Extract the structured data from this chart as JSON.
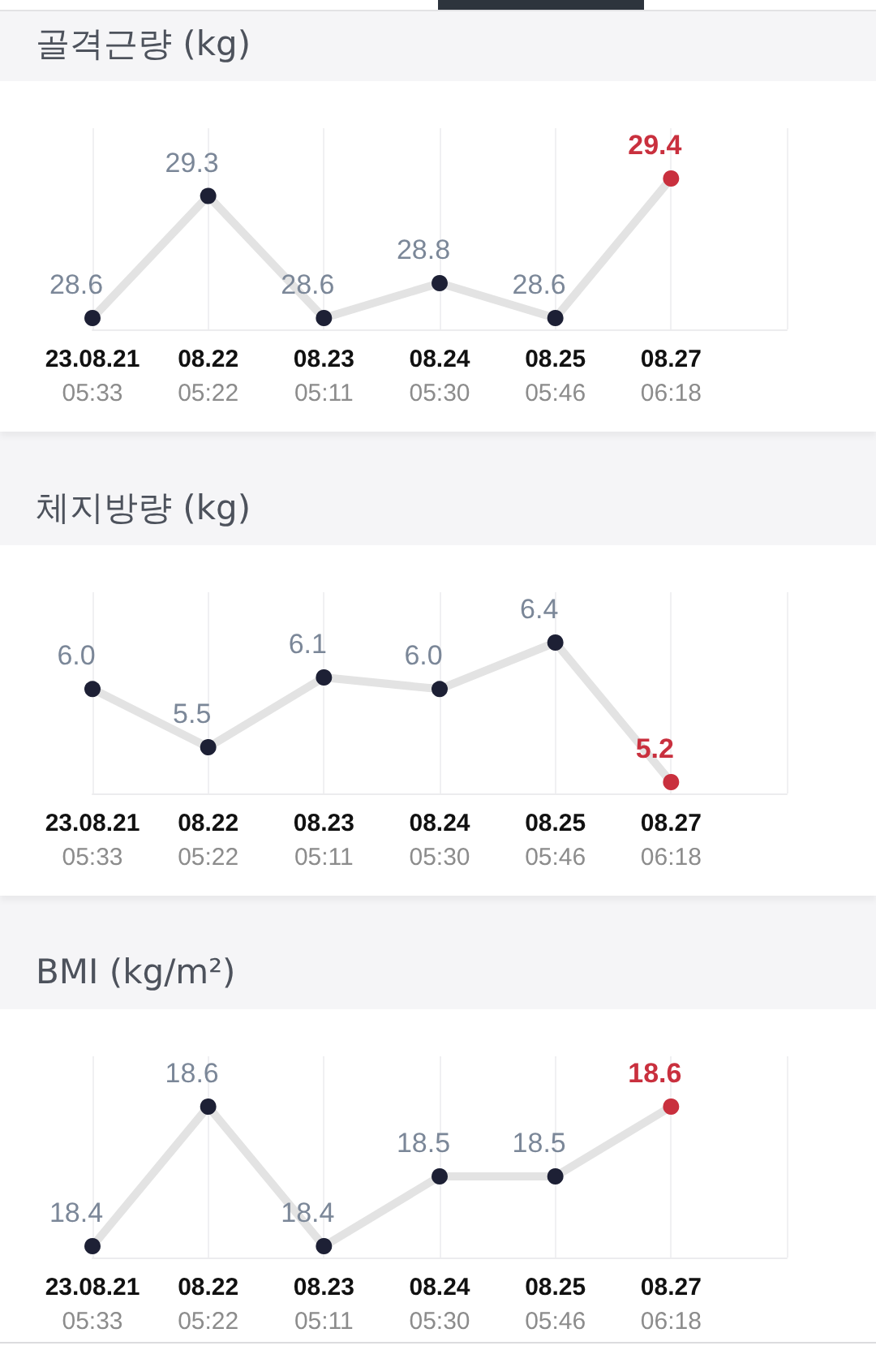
{
  "chart_data": [
    {
      "type": "line",
      "title": "골격근량 (kg)",
      "categories": [
        "23.08.21\n05:33",
        "08.22\n05:22",
        "08.23\n05:11",
        "08.24\n05:30",
        "08.25\n05:46",
        "08.27\n06:18"
      ],
      "values": [
        28.6,
        29.3,
        28.6,
        28.8,
        28.6,
        29.4
      ],
      "color": "#e3e3e3",
      "colors": [
        "#1d2035",
        "#1d2035",
        "#1d2035",
        "#1d2035",
        "#1d2035",
        "#c9303e"
      ],
      "marker": "circle",
      "line_style": "solid",
      "grid": "x",
      "data_labels": true
    },
    {
      "type": "line",
      "title": "체지방량 (kg)",
      "categories": [
        "23.08.21\n05:33",
        "08.22\n05:22",
        "08.23\n05:11",
        "08.24\n05:30",
        "08.25\n05:46",
        "08.27\n06:18"
      ],
      "values": [
        6.0,
        5.5,
        6.1,
        6.0,
        6.4,
        5.2
      ],
      "value_labels": [
        "6.0",
        "5.5",
        "6.1",
        "6.0",
        "6.4",
        "5.2"
      ],
      "color": "#e3e3e3",
      "colors": [
        "#1d2035",
        "#1d2035",
        "#1d2035",
        "#1d2035",
        "#1d2035",
        "#c9303e"
      ],
      "marker": "circle",
      "line_style": "solid",
      "grid": "x"
    },
    {
      "type": "line",
      "title": "BMI (kg/m²)",
      "categories": [
        "23.08.21\n05:33",
        "08.22\n05:22",
        "08.23\n05:11",
        "08.24\n05:30",
        "08.25\n05:46",
        "08.27\n06:18"
      ],
      "values": [
        18.4,
        18.6,
        18.4,
        18.5,
        18.5,
        18.6
      ],
      "color": "#e3e3e3",
      "colors": [
        "#1d2035",
        "#1d2035",
        "#1d2035",
        "#1d2035",
        "#1d2035",
        "#c9303e"
      ],
      "marker": "circle",
      "line_style": "solid",
      "grid": "x",
      "data_labels": true
    }
  ]
}
